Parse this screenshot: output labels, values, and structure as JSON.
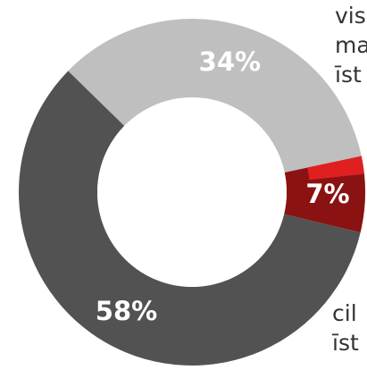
{
  "chart_data": {
    "type": "pie",
    "donut": true,
    "values": [
      34,
      7,
      58
    ],
    "labels": [
      "34%",
      "7%",
      "58%"
    ],
    "colors": [
      "#bfbfbf",
      "#8b1212",
      "#525252"
    ],
    "label_colors": [
      "#ffffff",
      "#ffffff",
      "#ffffff"
    ],
    "accent_sliver_color": "#e02020",
    "center_color": "#ffffff",
    "start_angle_deg": -12,
    "direction": "clockwise"
  },
  "side_text": {
    "top_lines": [
      "vis",
      "ma",
      "īst"
    ],
    "bottom_lines": [
      "cil",
      "īst"
    ]
  }
}
